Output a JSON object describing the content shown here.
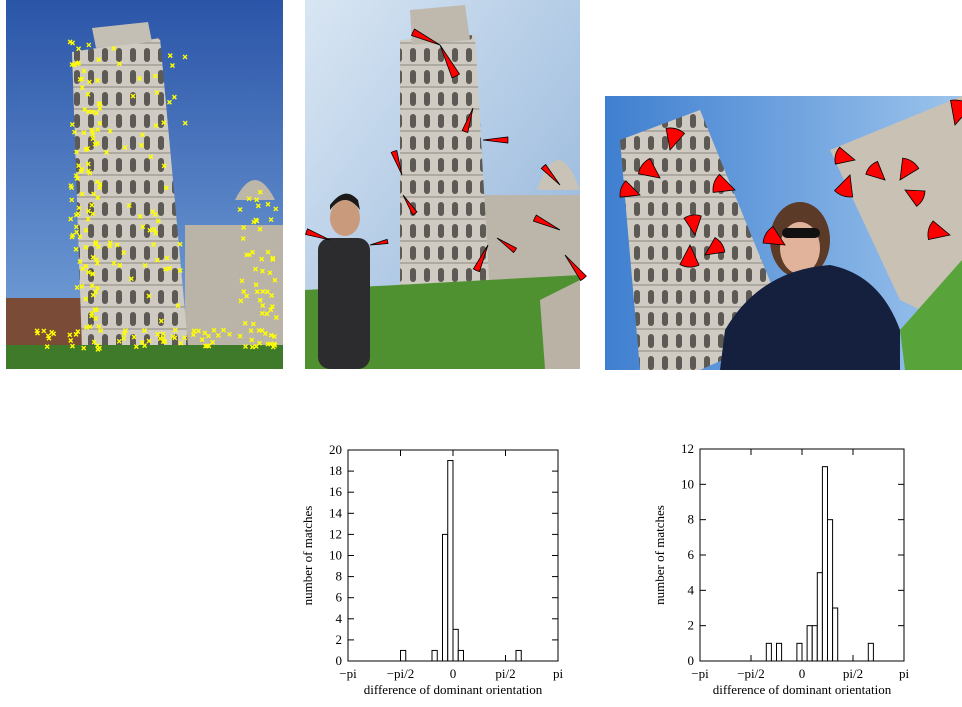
{
  "chart_data": [
    {
      "type": "histogram",
      "xlabel": "difference of dominant orientation",
      "ylabel": "number of matches",
      "bins": [
        -3.1416,
        -2.9845,
        -2.8274,
        -2.6704,
        -2.5133,
        -2.3562,
        -2.1991,
        -2.042,
        -1.885,
        -1.7279,
        -1.5708,
        -1.4137,
        -1.2566,
        -1.0996,
        -0.9425,
        -0.7854,
        -0.6283,
        -0.4712,
        -0.3142,
        -0.1571,
        0,
        0.1571,
        0.3142,
        0.4712,
        0.6283,
        0.7854,
        0.9425,
        1.0996,
        1.2566,
        1.4137,
        1.5708,
        1.7279,
        1.885,
        2.042,
        2.1991,
        2.3562,
        2.5133,
        2.6704,
        2.8274,
        2.9845,
        3.1416
      ],
      "values": [
        0,
        0,
        0,
        0,
        0,
        0,
        0,
        0,
        0,
        0,
        1,
        0,
        0,
        0,
        0,
        0,
        1,
        0,
        12,
        19,
        3,
        1,
        0,
        0,
        0,
        0,
        0,
        0,
        0,
        0,
        0,
        0,
        1,
        0,
        0,
        0,
        0,
        0,
        0,
        0
      ],
      "color": "#ffffff",
      "xlim": [
        -3.1416,
        3.1416
      ],
      "xticks": [
        {
          "value": -3.1416,
          "label": "−pi"
        },
        {
          "value": -1.5708,
          "label": "−pi/2"
        },
        0,
        {
          "value": 1.5708,
          "label": "pi/2"
        },
        {
          "value": 3.1416,
          "label": "pi"
        }
      ],
      "ylim": [
        0,
        20
      ],
      "yticks": [
        0,
        2,
        4,
        6,
        8,
        10,
        12,
        14,
        16,
        18,
        20
      ]
    },
    {
      "type": "histogram",
      "xlabel": "difference of dominant orientation",
      "ylabel": "number of matches",
      "bins": [
        -3.1416,
        -2.9845,
        -2.8274,
        -2.6704,
        -2.5133,
        -2.3562,
        -2.1991,
        -2.042,
        -1.885,
        -1.7279,
        -1.5708,
        -1.4137,
        -1.2566,
        -1.0996,
        -0.9425,
        -0.7854,
        -0.6283,
        -0.4712,
        -0.3142,
        -0.1571,
        0,
        0.1571,
        0.3142,
        0.4712,
        0.6283,
        0.7854,
        0.9425,
        1.0996,
        1.2566,
        1.4137,
        1.5708,
        1.7279,
        1.885,
        2.042,
        2.1991,
        2.3562,
        2.5133,
        2.6704,
        2.8274,
        2.9845,
        3.1416
      ],
      "values": [
        0,
        0,
        0,
        0,
        0,
        0,
        0,
        0,
        0,
        0,
        0,
        0,
        0,
        1,
        0,
        1,
        0,
        0,
        0,
        1,
        0,
        2,
        2,
        5,
        11,
        8,
        3,
        0,
        0,
        0,
        0,
        0,
        0,
        1,
        0,
        0,
        0,
        0,
        0,
        0
      ],
      "color": "#ffffff",
      "xlim": [
        -3.1416,
        3.1416
      ],
      "xticks": [
        {
          "value": -3.1416,
          "label": "−pi"
        },
        {
          "value": -1.5708,
          "label": "−pi/2"
        },
        0,
        {
          "value": 1.5708,
          "label": "pi/2"
        },
        {
          "value": 3.1416,
          "label": "pi"
        }
      ],
      "ylim": [
        0,
        12
      ],
      "yticks": [
        0,
        2,
        4,
        6,
        8,
        10,
        12
      ]
    }
  ]
}
